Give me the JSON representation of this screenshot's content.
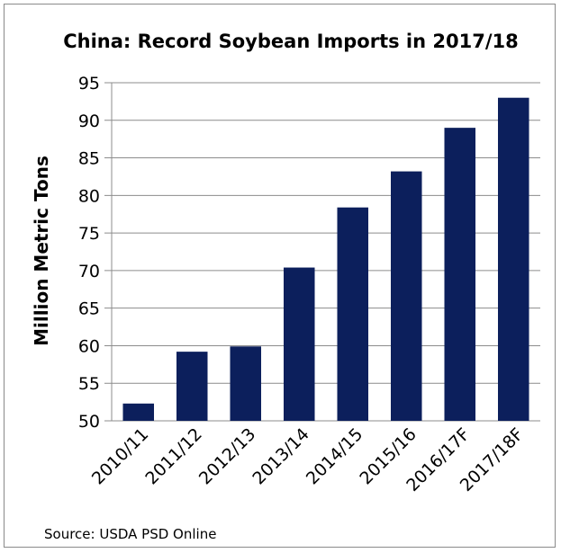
{
  "chart_data": {
    "type": "bar",
    "title": "China: Record Soybean Imports in 2017/18",
    "ylabel": "Million Metric Tons",
    "xlabel": "",
    "categories": [
      "2010/11",
      "2011/12",
      "2012/13",
      "2013/14",
      "2014/15",
      "2015/16",
      "2016/17F",
      "2017/18F"
    ],
    "values": [
      52.3,
      59.2,
      59.9,
      70.4,
      78.4,
      83.2,
      89.0,
      93.0
    ],
    "ylim": [
      50,
      95
    ],
    "yticks": [
      "50",
      "55",
      "60",
      "65",
      "70",
      "75",
      "80",
      "85",
      "90",
      "95"
    ],
    "grid": true,
    "bar_color": "#0c1f5c",
    "grid_color": "#8c8c8c",
    "source": "Source: USDA PSD Online"
  }
}
